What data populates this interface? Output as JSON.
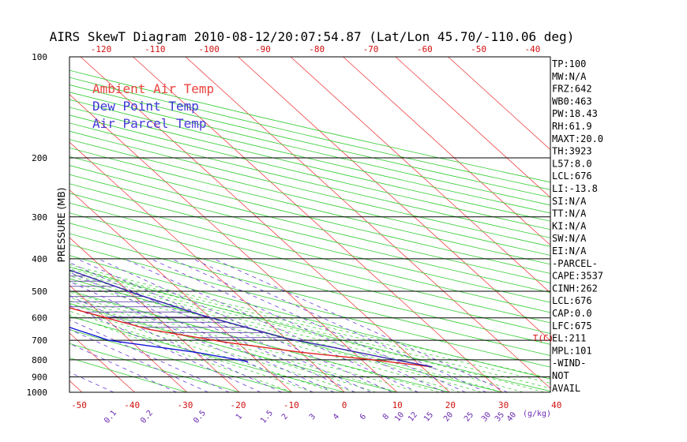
{
  "chart_data": {
    "type": "line",
    "title": "AIRS SkewT Diagram 2010-08-12/20:07:54.87 (Lat/Lon 45.70/-110.06 deg)",
    "ylabel": "PRESSURE (MB)",
    "xlabel_bottom_units": "T(C)",
    "mixing_ratio_units": "(g/kg)",
    "yscale": "log",
    "ylim": [
      1000,
      100
    ],
    "pressure_ticks": [
      100,
      200,
      300,
      400,
      500,
      600,
      700,
      800,
      900,
      1000
    ],
    "top_ticks": [
      -120,
      -110,
      -100,
      -90,
      -80,
      -70,
      -60,
      -50,
      -40
    ],
    "bottom_ticks": [
      -50,
      -40,
      -30,
      -20,
      -10,
      0,
      10,
      20,
      30,
      40
    ],
    "mixing_ratio_labels": [
      "0.1",
      "0.2",
      "0.5",
      "1",
      "1.5",
      "2",
      "3",
      "4",
      "6",
      "8",
      "10",
      "12",
      "15",
      "20",
      "25",
      "30",
      "35",
      "40"
    ],
    "legend": [
      {
        "name": "Ambient Air Temp",
        "color": "#e8453f"
      },
      {
        "name": "Dew Point Temp",
        "color": "#3a37d6"
      },
      {
        "name": "Air Parcel Temp",
        "color": "#4a3ad6"
      }
    ],
    "series": [
      {
        "name": "Ambient Air Temp",
        "color": "#e02020",
        "points": [
          [
            -58,
            100
          ],
          [
            -62,
            130
          ],
          [
            -66,
            160
          ],
          [
            -70,
            200
          ],
          [
            -73,
            240
          ],
          [
            -73,
            280
          ],
          [
            -68,
            340
          ],
          [
            -61,
            400
          ],
          [
            -54,
            470
          ],
          [
            -46,
            550
          ],
          [
            -34,
            650
          ],
          [
            -22,
            710
          ],
          [
            -10,
            760
          ],
          [
            2,
            800
          ],
          [
            12,
            840
          ]
        ]
      },
      {
        "name": "Dew Point Temp",
        "color": "#1515d8",
        "points": [
          [
            -88,
            100
          ],
          [
            -90,
            125
          ],
          [
            -93,
            150
          ],
          [
            -95,
            190
          ],
          [
            -94,
            230
          ],
          [
            -93,
            280
          ],
          [
            -91,
            330
          ],
          [
            -88,
            390
          ],
          [
            -76,
            450
          ],
          [
            -64,
            520
          ],
          [
            -52,
            600
          ],
          [
            -48,
            650
          ],
          [
            -44,
            700
          ],
          [
            -30,
            760
          ],
          [
            -22,
            810
          ]
        ]
      },
      {
        "name": "Air Parcel Temp",
        "color": "#3322aa",
        "points": [
          [
            -100,
            100
          ],
          [
            -91,
            130
          ],
          [
            -84,
            160
          ],
          [
            -77,
            200
          ],
          [
            -68,
            240
          ],
          [
            -58,
            290
          ],
          [
            -48,
            350
          ],
          [
            -37,
            430
          ],
          [
            -29,
            510
          ],
          [
            -21,
            590
          ],
          [
            -13,
            660
          ],
          [
            -10,
            690
          ],
          [
            -2,
            740
          ],
          [
            5,
            790
          ],
          [
            12,
            840
          ]
        ]
      }
    ],
    "indices": [
      "TP:100",
      "MW:N/A",
      "FRZ:642",
      "WB0:463",
      "PW:18.43",
      "RH:61.9",
      "MAXT:20.0",
      "TH:3923",
      "L57:8.0",
      "LCL:676",
      "LI:-13.8",
      "SI:N/A",
      "TT:N/A",
      "KI:N/A",
      "SW:N/A",
      "EI:N/A",
      "-PARCEL-",
      "CAPE:3537",
      "CINH:262",
      "LCL:676",
      "CAP:0.0",
      "LFC:675",
      "EL:211",
      "MPL:101",
      "-WIND-",
      "NOT",
      "AVAIL"
    ]
  }
}
